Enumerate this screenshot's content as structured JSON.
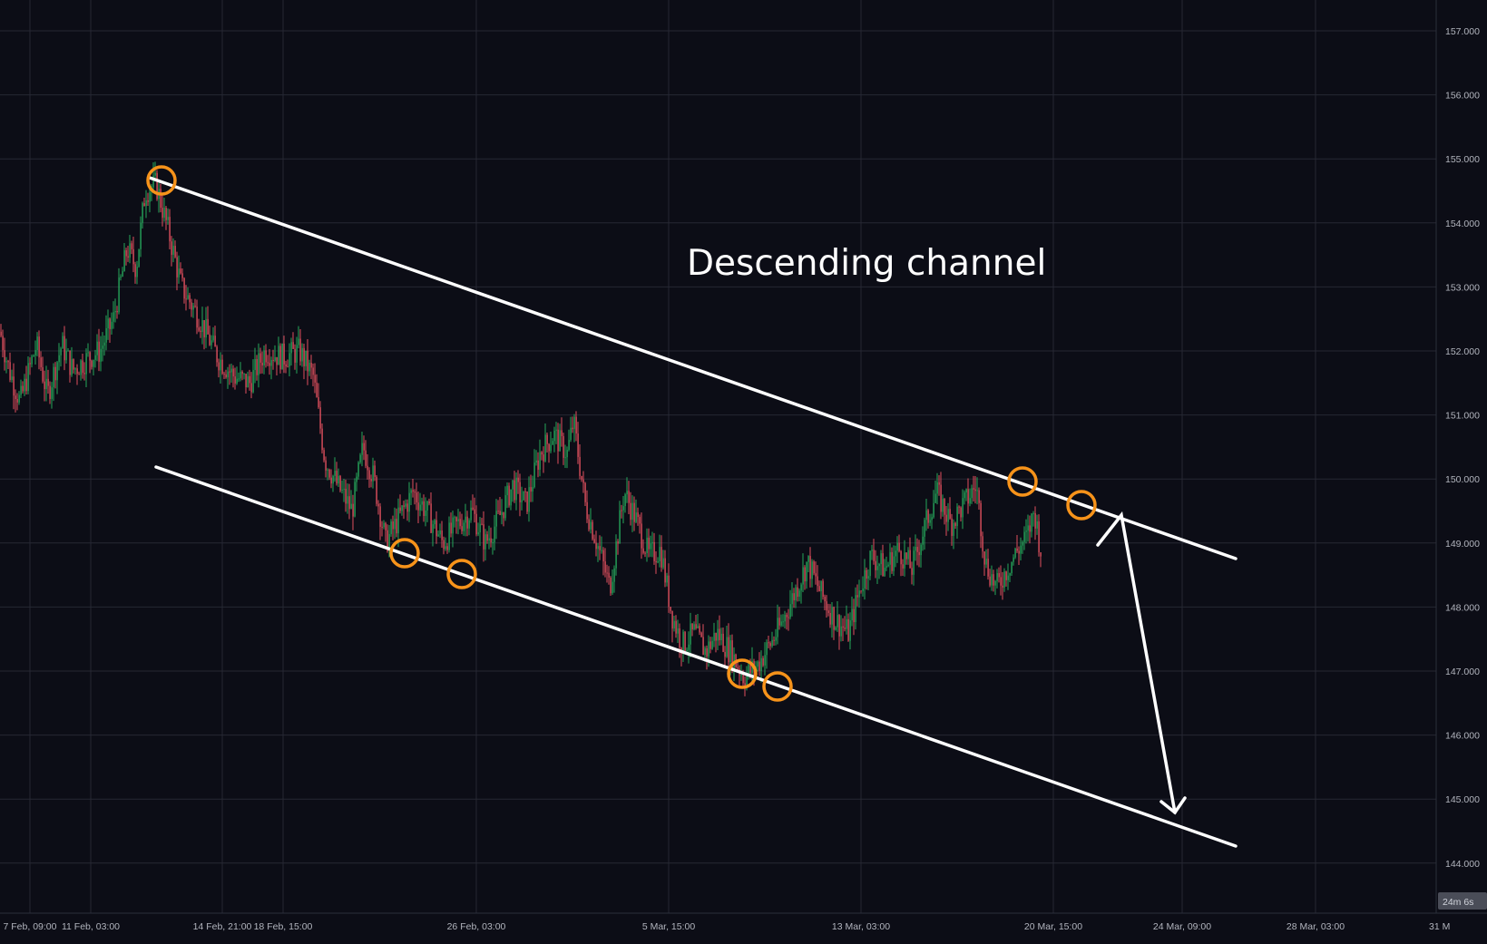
{
  "chart_data": {
    "type": "candlestick",
    "annotation": "Descending channel",
    "countdown": "24m 6s",
    "y_axis": {
      "range": [
        143.1,
        157.5
      ],
      "ticks": [
        "144.000",
        "145.000",
        "146.000",
        "147.000",
        "148.000",
        "149.000",
        "150.000",
        "151.000",
        "152.000",
        "153.000",
        "154.000",
        "155.000",
        "156.000",
        "157.000"
      ]
    },
    "x_axis": {
      "ticks": [
        "7 Feb, 09:00",
        "11 Feb, 03:00",
        "14 Feb, 21:00",
        "18 Feb, 15:00",
        "26 Feb, 03:00",
        "5 Mar, 15:00",
        "13 Mar, 03:00",
        "20 Mar, 15:00",
        "24 Mar, 09:00",
        "28 Mar, 03:00",
        "31 M"
      ]
    },
    "price_path": [
      {
        "x": 0,
        "y": 152.3
      },
      {
        "x": 10,
        "y": 151.7
      },
      {
        "x": 22,
        "y": 151.2
      },
      {
        "x": 40,
        "y": 152.1
      },
      {
        "x": 52,
        "y": 151.3
      },
      {
        "x": 68,
        "y": 152.1
      },
      {
        "x": 80,
        "y": 151.7
      },
      {
        "x": 98,
        "y": 151.9
      },
      {
        "x": 110,
        "y": 152.0
      },
      {
        "x": 125,
        "y": 152.5
      },
      {
        "x": 140,
        "y": 153.6
      },
      {
        "x": 150,
        "y": 153.3
      },
      {
        "x": 160,
        "y": 154.5
      },
      {
        "x": 172,
        "y": 154.6
      },
      {
        "x": 185,
        "y": 153.9
      },
      {
        "x": 200,
        "y": 153.0
      },
      {
        "x": 220,
        "y": 152.5
      },
      {
        "x": 240,
        "y": 151.9
      },
      {
        "x": 258,
        "y": 151.6
      },
      {
        "x": 275,
        "y": 151.5
      },
      {
        "x": 292,
        "y": 152.0
      },
      {
        "x": 312,
        "y": 151.9
      },
      {
        "x": 330,
        "y": 152.0
      },
      {
        "x": 345,
        "y": 151.6
      },
      {
        "x": 358,
        "y": 150.3
      },
      {
        "x": 372,
        "y": 149.9
      },
      {
        "x": 388,
        "y": 149.5
      },
      {
        "x": 400,
        "y": 150.5
      },
      {
        "x": 412,
        "y": 150.0
      },
      {
        "x": 425,
        "y": 149.0
      },
      {
        "x": 440,
        "y": 149.4
      },
      {
        "x": 455,
        "y": 149.8
      },
      {
        "x": 470,
        "y": 149.5
      },
      {
        "x": 488,
        "y": 149.0
      },
      {
        "x": 505,
        "y": 149.3
      },
      {
        "x": 520,
        "y": 149.5
      },
      {
        "x": 535,
        "y": 149.0
      },
      {
        "x": 550,
        "y": 149.4
      },
      {
        "x": 565,
        "y": 149.9
      },
      {
        "x": 580,
        "y": 149.6
      },
      {
        "x": 595,
        "y": 150.4
      },
      {
        "x": 610,
        "y": 150.7
      },
      {
        "x": 625,
        "y": 150.4
      },
      {
        "x": 632,
        "y": 150.9
      },
      {
        "x": 645,
        "y": 149.6
      },
      {
        "x": 660,
        "y": 148.9
      },
      {
        "x": 672,
        "y": 148.3
      },
      {
        "x": 688,
        "y": 149.8
      },
      {
        "x": 700,
        "y": 149.4
      },
      {
        "x": 715,
        "y": 148.8
      },
      {
        "x": 728,
        "y": 148.9
      },
      {
        "x": 740,
        "y": 147.9
      },
      {
        "x": 752,
        "y": 147.4
      },
      {
        "x": 765,
        "y": 147.6
      },
      {
        "x": 778,
        "y": 147.3
      },
      {
        "x": 790,
        "y": 147.6
      },
      {
        "x": 805,
        "y": 147.3
      },
      {
        "x": 820,
        "y": 146.9
      },
      {
        "x": 835,
        "y": 147.1
      },
      {
        "x": 848,
        "y": 147.4
      },
      {
        "x": 860,
        "y": 147.7
      },
      {
        "x": 875,
        "y": 148.2
      },
      {
        "x": 890,
        "y": 148.7
      },
      {
        "x": 905,
        "y": 148.2
      },
      {
        "x": 920,
        "y": 147.8
      },
      {
        "x": 935,
        "y": 147.6
      },
      {
        "x": 948,
        "y": 148.3
      },
      {
        "x": 960,
        "y": 148.8
      },
      {
        "x": 975,
        "y": 148.6
      },
      {
        "x": 990,
        "y": 148.9
      },
      {
        "x": 1005,
        "y": 148.6
      },
      {
        "x": 1018,
        "y": 149.2
      },
      {
        "x": 1032,
        "y": 149.8
      },
      {
        "x": 1048,
        "y": 149.3
      },
      {
        "x": 1062,
        "y": 149.6
      },
      {
        "x": 1076,
        "y": 149.9
      },
      {
        "x": 1086,
        "y": 148.7
      },
      {
        "x": 1098,
        "y": 148.3
      },
      {
        "x": 1110,
        "y": 148.6
      },
      {
        "x": 1122,
        "y": 148.9
      },
      {
        "x": 1132,
        "y": 149.1
      },
      {
        "x": 1140,
        "y": 149.5
      },
      {
        "x": 1148,
        "y": 148.8
      }
    ]
  }
}
